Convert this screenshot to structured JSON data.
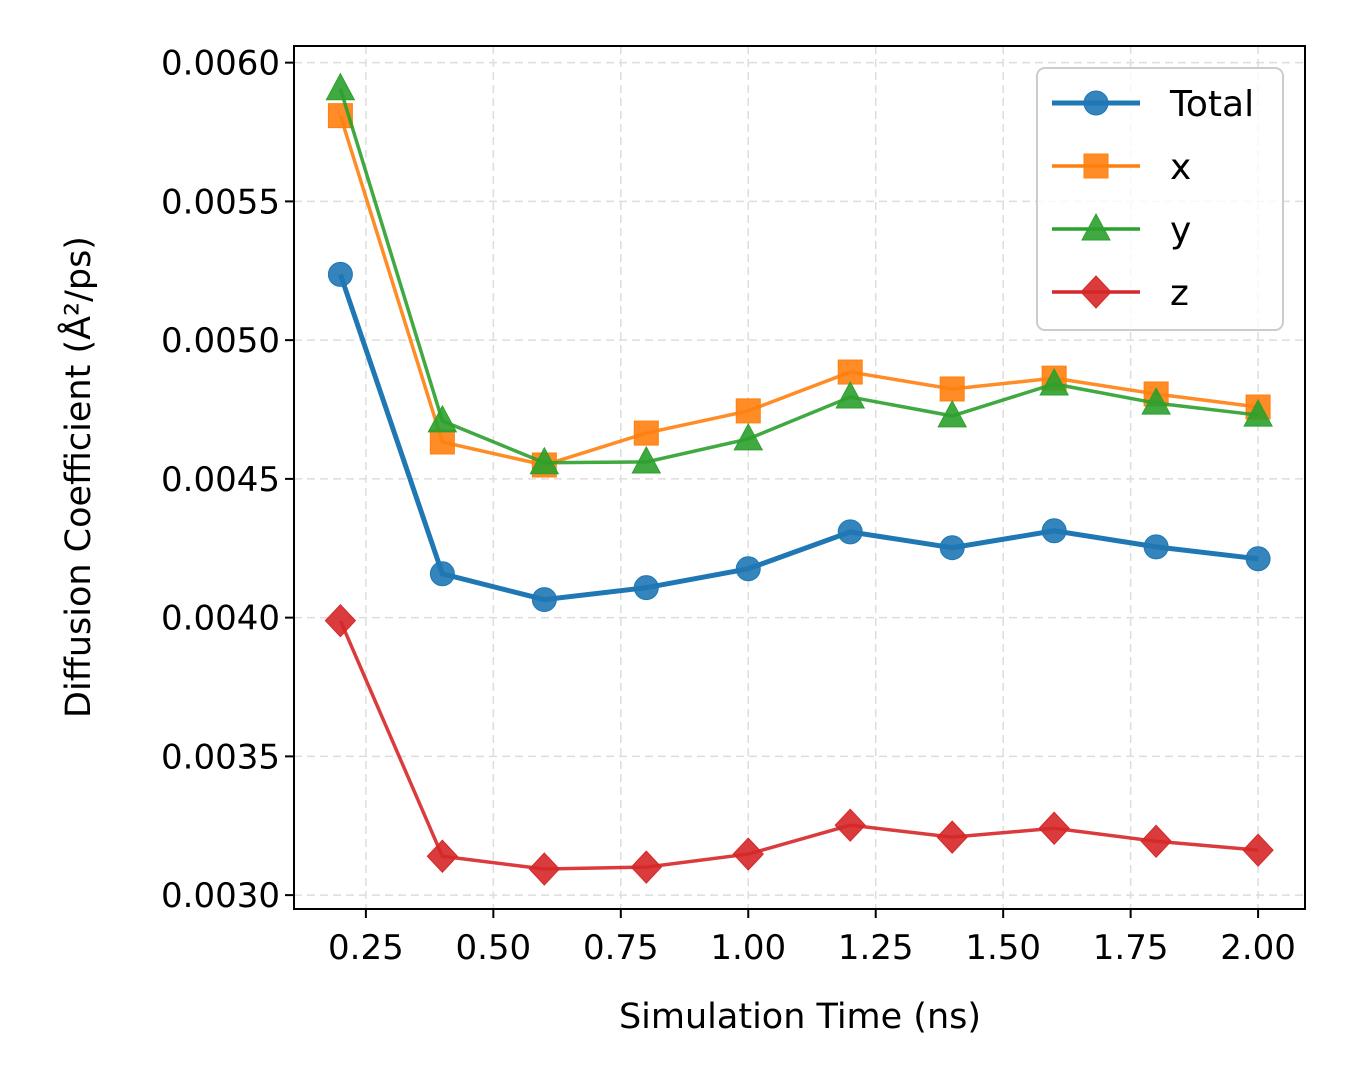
{
  "chart_data": {
    "type": "line",
    "title": "",
    "xlabel": "Simulation Time (ns)",
    "ylabel": "Diffusion Coefficient (Å²/ps)",
    "xlim": [
      0.109,
      2.092
    ],
    "ylim": [
      0.00295,
      0.00606
    ],
    "grid": true,
    "legend_position": "top-right",
    "x": [
      0.2,
      0.4,
      0.6,
      0.8,
      1.0,
      1.2,
      1.4,
      1.6,
      1.8,
      2.0
    ],
    "xticks": [
      "0.25",
      "0.50",
      "0.75",
      "1.00",
      "1.25",
      "1.50",
      "1.75",
      "2.00"
    ],
    "yticks": [
      "0.0030",
      "0.0035",
      "0.0040",
      "0.0045",
      "0.0050",
      "0.0055",
      "0.0060"
    ],
    "series": [
      {
        "name": "Total",
        "color": "#1f77b4",
        "marker": "circle",
        "values": [
          0.005237,
          0.004158,
          0.004065,
          0.004108,
          0.004176,
          0.004309,
          0.004252,
          0.004313,
          0.004255,
          0.004212
        ]
      },
      {
        "name": "x",
        "color": "#ff7f0e",
        "marker": "square",
        "values": [
          0.005809,
          0.004633,
          0.00455,
          0.004665,
          0.004745,
          0.004885,
          0.004824,
          0.004863,
          0.004806,
          0.004759
        ]
      },
      {
        "name": "y",
        "color": "#2ca02c",
        "marker": "triangle",
        "values": [
          0.005906,
          0.004709,
          0.004558,
          0.004561,
          0.004644,
          0.004795,
          0.004727,
          0.004842,
          0.004773,
          0.00473
        ]
      },
      {
        "name": "z",
        "color": "#d62728",
        "marker": "diamond",
        "values": [
          0.003989,
          0.00314,
          0.003094,
          0.003101,
          0.003148,
          0.003252,
          0.003209,
          0.003241,
          0.003194,
          0.003162
        ]
      }
    ]
  }
}
